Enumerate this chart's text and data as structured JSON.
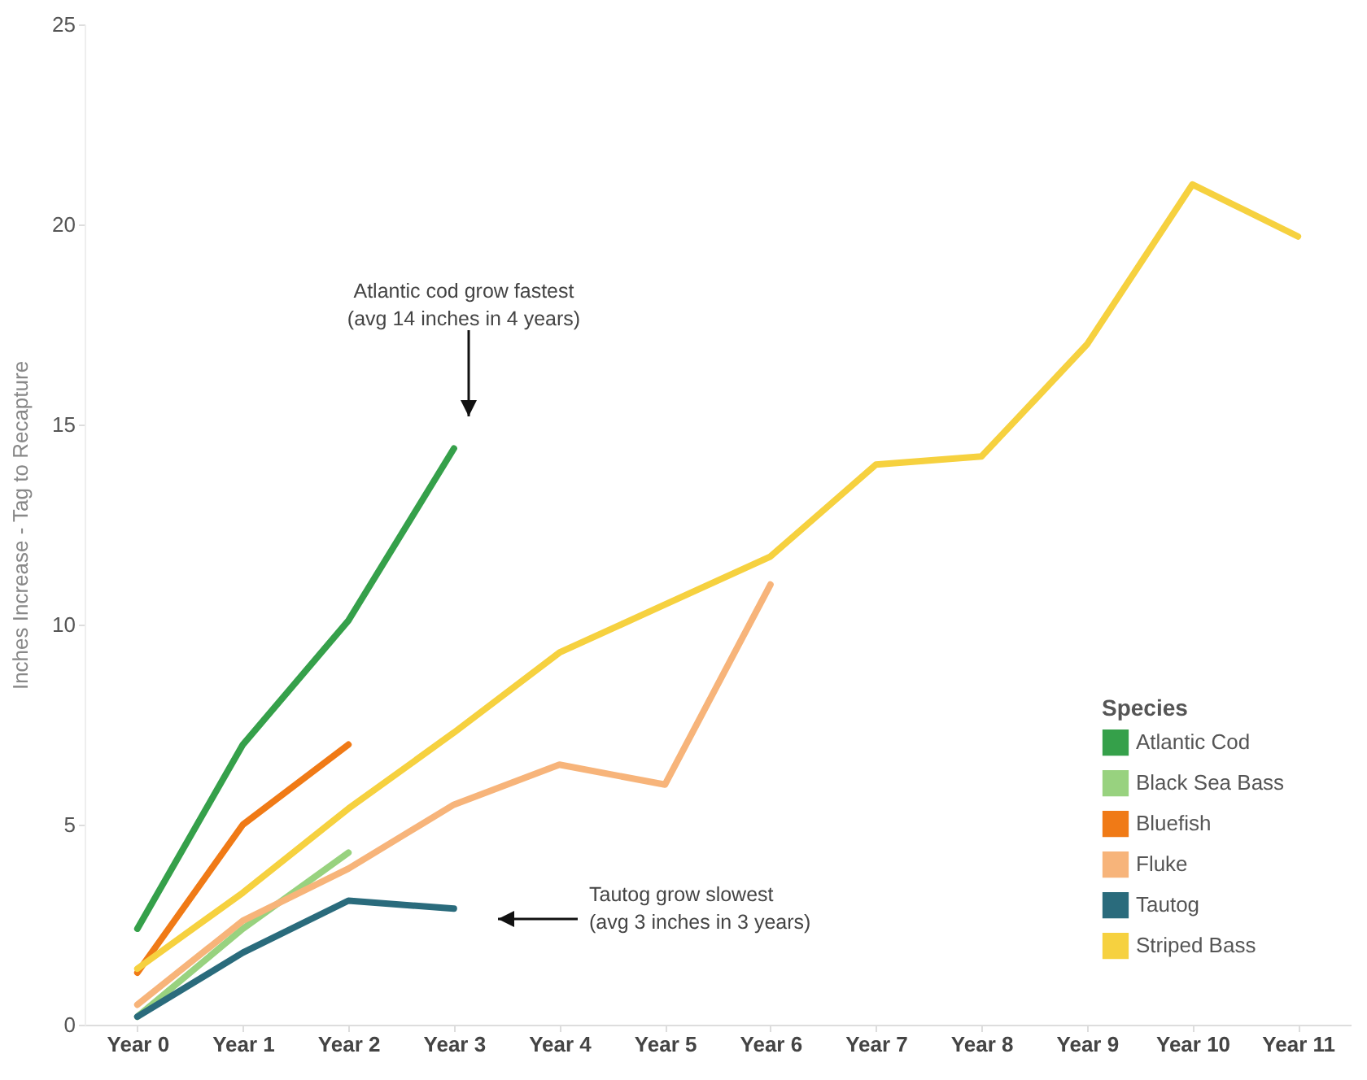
{
  "chart_data": {
    "type": "line",
    "ylabel": "Inches Increase - Tag to Recapture",
    "legend_title": "Species",
    "categories": [
      "Year 0",
      "Year 1",
      "Year 2",
      "Year 3",
      "Year 4",
      "Year 5",
      "Year 6",
      "Year 7",
      "Year 8",
      "Year 9",
      "Year 10",
      "Year 11"
    ],
    "series": [
      {
        "name": "Atlantic Cod",
        "color": "#35a04a",
        "values": [
          2.4,
          7.0,
          10.1,
          14.4,
          null,
          null,
          null,
          null,
          null,
          null,
          null,
          null
        ]
      },
      {
        "name": "Black Sea Bass",
        "color": "#98d27f",
        "values": [
          0.2,
          2.4,
          4.3,
          null,
          null,
          null,
          null,
          null,
          null,
          null,
          null,
          null
        ]
      },
      {
        "name": "Bluefish",
        "color": "#f07a16",
        "values": [
          1.3,
          5.0,
          7.0,
          null,
          null,
          null,
          null,
          null,
          null,
          null,
          null,
          null
        ]
      },
      {
        "name": "Fluke",
        "color": "#f7b47a",
        "values": [
          0.5,
          2.6,
          3.9,
          5.5,
          6.5,
          6.0,
          11.0,
          null,
          null,
          null,
          null,
          null
        ]
      },
      {
        "name": "Tautog",
        "color": "#2a6b7c",
        "values": [
          0.2,
          1.8,
          3.1,
          2.9,
          null,
          null,
          null,
          null,
          null,
          null,
          null,
          null
        ]
      },
      {
        "name": "Striped Bass",
        "color": "#f6d13f",
        "values": [
          1.4,
          3.3,
          5.4,
          7.3,
          9.3,
          10.5,
          11.7,
          14.0,
          14.2,
          17.0,
          21.0,
          19.7
        ]
      }
    ],
    "ylim": [
      0,
      25
    ],
    "yticks": [
      0,
      5,
      10,
      15,
      20,
      25
    ],
    "grid": false,
    "legend": "bottom right",
    "line_style": "solid",
    "annotations": [
      "Atlantic cod grow fastest\n(avg 14 inches in 4 years)",
      "Tautog grow slowest\n(avg 3 inches in 3 years)"
    ]
  }
}
